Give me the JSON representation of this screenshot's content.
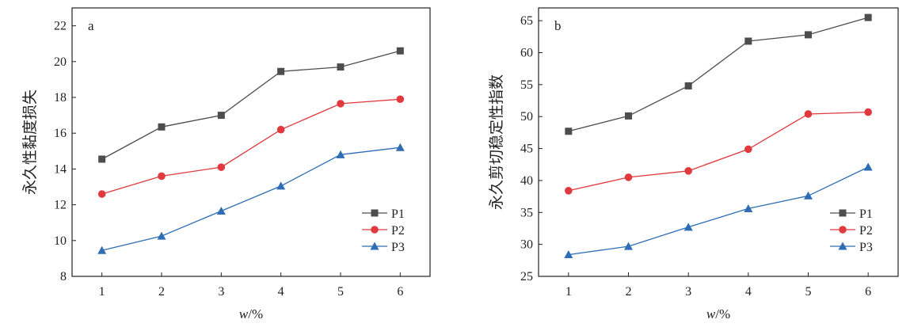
{
  "chart_data": [
    {
      "type": "line",
      "panel_label": "a",
      "x": [
        1,
        2,
        3,
        4,
        5,
        6
      ],
      "xlabel_var": "w",
      "xlabel_unit": "/%",
      "ylabel": "永久性黏度损失",
      "xlim": [
        0.5,
        6.5
      ],
      "ylim": [
        8,
        23
      ],
      "yticks": [
        8,
        10,
        12,
        14,
        16,
        18,
        20,
        22
      ],
      "xticks": [
        1,
        2,
        3,
        4,
        5,
        6
      ],
      "legend_position": "bottom-right",
      "series": [
        {
          "name": "P1",
          "color": "#4d4d4d",
          "marker": "square",
          "values": [
            14.55,
            16.35,
            17.0,
            19.45,
            19.7,
            20.6
          ]
        },
        {
          "name": "P2",
          "color": "#e0393e",
          "marker": "circle",
          "values": [
            12.6,
            13.6,
            14.1,
            16.2,
            17.65,
            17.9
          ]
        },
        {
          "name": "P3",
          "color": "#2e6db4",
          "marker": "triangle",
          "values": [
            9.45,
            10.25,
            11.65,
            13.05,
            14.8,
            15.2
          ]
        }
      ]
    },
    {
      "type": "line",
      "panel_label": "b",
      "x": [
        1,
        2,
        3,
        4,
        5,
        6
      ],
      "xlabel_var": "w",
      "xlabel_unit": "/%",
      "ylabel": "永久剪切稳定性指数",
      "xlim": [
        0.5,
        6.5
      ],
      "ylim": [
        25,
        67
      ],
      "yticks": [
        25,
        30,
        35,
        40,
        45,
        50,
        55,
        60,
        65
      ],
      "xticks": [
        1,
        2,
        3,
        4,
        5,
        6
      ],
      "legend_position": "bottom-right",
      "series": [
        {
          "name": "P1",
          "color": "#4d4d4d",
          "marker": "square",
          "values": [
            47.7,
            50.1,
            54.8,
            61.8,
            62.8,
            65.5
          ]
        },
        {
          "name": "P2",
          "color": "#e0393e",
          "marker": "circle",
          "values": [
            38.4,
            40.5,
            41.5,
            44.9,
            50.4,
            50.7
          ]
        },
        {
          "name": "P3",
          "color": "#2e6db4",
          "marker": "triangle",
          "values": [
            28.4,
            29.7,
            32.7,
            35.6,
            37.6,
            42.1
          ]
        }
      ]
    }
  ]
}
